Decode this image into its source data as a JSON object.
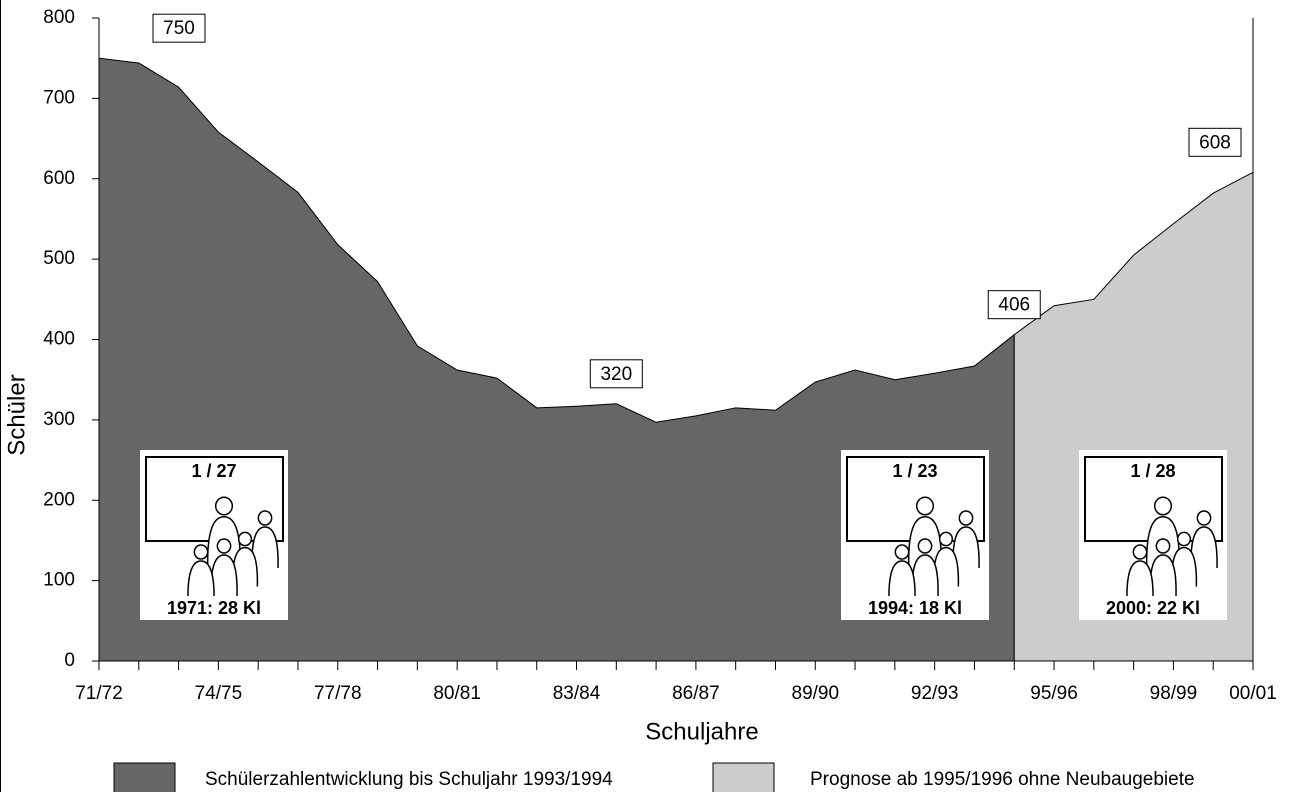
{
  "chart_data": {
    "type": "area",
    "ylabel": "Schüler",
    "xlabel": "Schuljahre",
    "categories": [
      "71/72",
      null,
      null,
      "74/75",
      null,
      null,
      "77/78",
      null,
      null,
      "80/81",
      null,
      null,
      "83/84",
      null,
      null,
      "86/87",
      null,
      null,
      "89/90",
      null,
      null,
      "92/93",
      null,
      null,
      "95/96",
      null,
      null,
      "98/99",
      null,
      "00/01"
    ],
    "series": [
      {
        "name": "Schülerzahlentwicklung bis Schuljahr 1993/1994",
        "color": "#666666",
        "values": [
          750,
          744,
          714,
          658,
          621,
          583,
          518,
          472,
          392,
          362,
          352,
          315,
          317,
          320,
          297,
          305,
          315,
          312,
          347,
          362,
          350,
          358,
          367,
          406,
          null,
          null,
          null,
          null,
          null,
          null
        ],
        "value_labels": [
          "750",
          null,
          null,
          null,
          null,
          null,
          null,
          null,
          null,
          null,
          null,
          null,
          null,
          "320",
          null,
          null,
          null,
          null,
          null,
          null,
          null,
          null,
          null,
          "406",
          null,
          null,
          null,
          null,
          null,
          null
        ]
      },
      {
        "name": "Prognose ab 1995/1996 ohne Neubaugebiete",
        "color": "#cccccc",
        "values": [
          null,
          null,
          null,
          null,
          null,
          null,
          null,
          null,
          null,
          null,
          null,
          null,
          null,
          null,
          null,
          null,
          null,
          null,
          null,
          null,
          null,
          null,
          null,
          406,
          442,
          450,
          505,
          544,
          582,
          608
        ],
        "value_labels": [
          null,
          null,
          null,
          null,
          null,
          null,
          null,
          null,
          null,
          null,
          null,
          null,
          null,
          null,
          null,
          null,
          null,
          null,
          null,
          null,
          null,
          null,
          null,
          null,
          null,
          null,
          null,
          null,
          null,
          "608"
        ]
      }
    ],
    "ylim": [
      0,
      800
    ],
    "yticks": [
      0,
      100,
      200,
      300,
      400,
      500,
      600,
      700,
      800
    ],
    "insets": [
      {
        "ratio": "1 / 27",
        "caption": "1971: 28 Kl"
      },
      {
        "ratio": "1 / 23",
        "caption": "1994: 18 Kl"
      },
      {
        "ratio": "1 / 28",
        "caption": "2000: 22 Kl"
      }
    ]
  }
}
